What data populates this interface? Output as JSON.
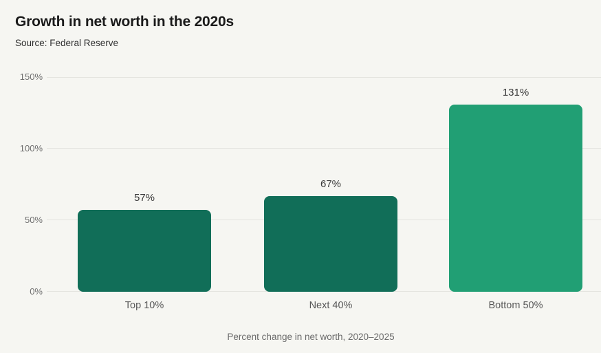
{
  "header": {
    "title": "Growth in net worth in the 2020s",
    "subtitle": "Source: Federal Reserve"
  },
  "caption": "Percent change in net worth, 2020–2025",
  "colors": {
    "background": "#f6f6f2",
    "gridline": "#e4e4df",
    "dark_green_bar": "#116e58",
    "light_green_bar": "#219f74",
    "title_text": "#1a1a1a",
    "axis_text": "#6f6f6f"
  },
  "chart_data": {
    "type": "bar",
    "title": "Growth in net worth in the 2020s",
    "subtitle": "Source: Federal Reserve",
    "categories": [
      "Top 10%",
      "Next 40%",
      "Bottom 50%"
    ],
    "values": [
      57,
      67,
      131
    ],
    "value_labels": [
      "57%",
      "67%",
      "131%"
    ],
    "bar_colors": [
      "#116e58",
      "#116e58",
      "#219f74"
    ],
    "xlabel": "Percent change in net worth, 2020–2025",
    "ylabel": "",
    "ylim": [
      0,
      150
    ],
    "yticks": [
      {
        "value": 0,
        "label": "0%"
      },
      {
        "value": 50,
        "label": "50%"
      },
      {
        "value": 100,
        "label": "100%"
      },
      {
        "value": 150,
        "label": "150%"
      }
    ],
    "grid": true,
    "legend": false
  }
}
